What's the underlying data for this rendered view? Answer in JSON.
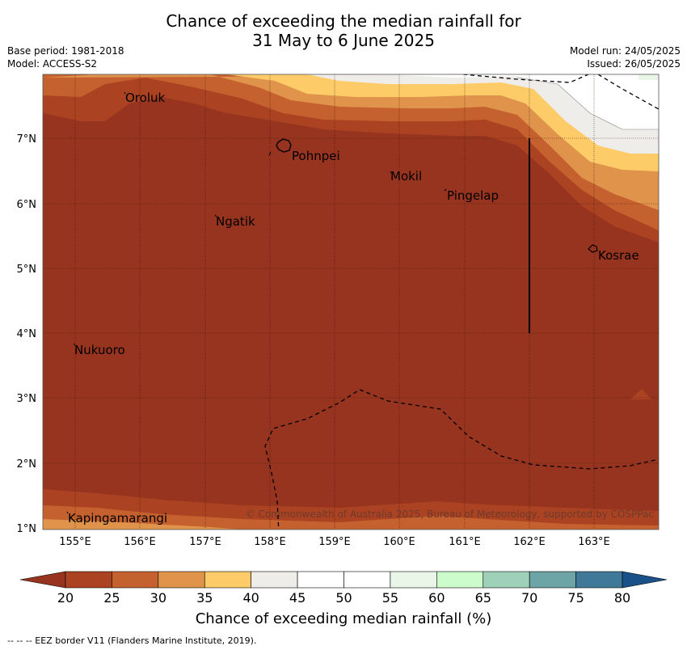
{
  "title": {
    "line1": "Chance of exceeding the median rainfall for",
    "line2": "31 May to 6 June 2025"
  },
  "header_left": {
    "base_period": "Base period: 1981-2018",
    "model": "Model: ACCESS-S2"
  },
  "header_right": {
    "model_run": "Model run: 24/05/2025",
    "issued": "Issued: 26/05/2025"
  },
  "map": {
    "lon_labels": [
      "155°E",
      "156°E",
      "157°E",
      "158°E",
      "159°E",
      "160°E",
      "161°E",
      "162°E",
      "163°E"
    ],
    "lat_labels": [
      "1°N",
      "2°N",
      "3°N",
      "4°N",
      "5°N",
      "6°N",
      "7°N"
    ],
    "places": [
      {
        "name": "Oroluk"
      },
      {
        "name": "Pohnpei"
      },
      {
        "name": "Mokil"
      },
      {
        "name": "Pingelap"
      },
      {
        "name": "Ngatik"
      },
      {
        "name": "Kosrae"
      },
      {
        "name": "Nukuoro"
      },
      {
        "name": "Kapingamarangi"
      }
    ],
    "copyright": "© Commonwealth of Australia 2025, Bureau of Meteorology, supported by COSPPac"
  },
  "colorbar": {
    "ticks": [
      "20",
      "25",
      "30",
      "35",
      "40",
      "45",
      "50",
      "55",
      "60",
      "65",
      "70",
      "75",
      "80"
    ],
    "colors": {
      "under": "#96341f",
      "bins": [
        "#ab4222",
        "#c5602f",
        "#e0934a",
        "#fdcc68",
        "#efedea",
        "#ffffff",
        "#ffffff",
        "#eaf7e8",
        "#ccfbcc",
        "#9fd1b9",
        "#6da4a6",
        "#3f7899"
      ],
      "over": "#1a5188"
    },
    "title": "Chance of exceeding median rainfall (%)"
  },
  "footer": "--  --  -- EEZ border V11 (Flanders Marine Institute, 2019)."
}
